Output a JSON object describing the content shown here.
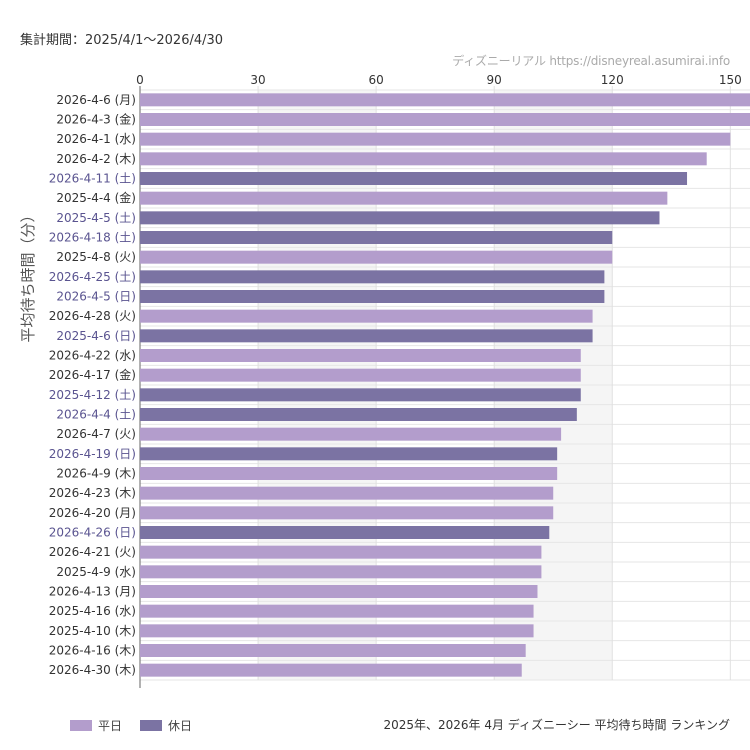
{
  "header": {
    "period": "集計期間：2025/4/1〜2026/4/30",
    "source": "ディズニーリアル https://disneyreal.asumirai.info"
  },
  "footer": {
    "caption": "2025年、2026年 4月 ディズニーシー 平均待ち時間 ランキング"
  },
  "legend": [
    {
      "label": "平日",
      "color": "#b39dcc"
    },
    {
      "label": "休日",
      "color": "#7b73a3"
    }
  ],
  "chart_data": {
    "type": "bar",
    "orientation": "horizontal",
    "ylabel": "平均待ち時間（分）",
    "xlim": [
      0,
      155
    ],
    "xticks": [
      0,
      30,
      60,
      90,
      120,
      150
    ],
    "grid": true,
    "categories": [
      "2026-4-6 (月)",
      "2026-4-3 (金)",
      "2026-4-1 (水)",
      "2026-4-2 (木)",
      "2026-4-11 (土)",
      "2025-4-4 (金)",
      "2025-4-5 (土)",
      "2026-4-18 (土)",
      "2025-4-8 (火)",
      "2026-4-25 (土)",
      "2026-4-5 (日)",
      "2026-4-28 (火)",
      "2025-4-6 (日)",
      "2026-4-22 (水)",
      "2026-4-17 (金)",
      "2025-4-12 (土)",
      "2026-4-4 (土)",
      "2026-4-7 (火)",
      "2026-4-19 (日)",
      "2026-4-9 (木)",
      "2026-4-23 (木)",
      "2026-4-20 (月)",
      "2026-4-26 (日)",
      "2026-4-21 (火)",
      "2025-4-9 (水)",
      "2026-4-13 (月)",
      "2025-4-16 (水)",
      "2025-4-10 (木)",
      "2026-4-16 (木)",
      "2026-4-30 (木)"
    ],
    "values": [
      155,
      155,
      150,
      144,
      139,
      134,
      132,
      120,
      120,
      118,
      118,
      115,
      115,
      112,
      112,
      112,
      111,
      107,
      106,
      106,
      105,
      105,
      104,
      102,
      102,
      101,
      100,
      100,
      98,
      97
    ],
    "day_type": [
      "平日",
      "平日",
      "平日",
      "平日",
      "休日",
      "平日",
      "休日",
      "休日",
      "平日",
      "休日",
      "休日",
      "平日",
      "休日",
      "平日",
      "平日",
      "休日",
      "休日",
      "平日",
      "休日",
      "平日",
      "平日",
      "平日",
      "休日",
      "平日",
      "平日",
      "平日",
      "平日",
      "平日",
      "平日",
      "平日"
    ],
    "label_colors": {
      "平日": "#333333",
      "休日": "#5a5490"
    }
  }
}
